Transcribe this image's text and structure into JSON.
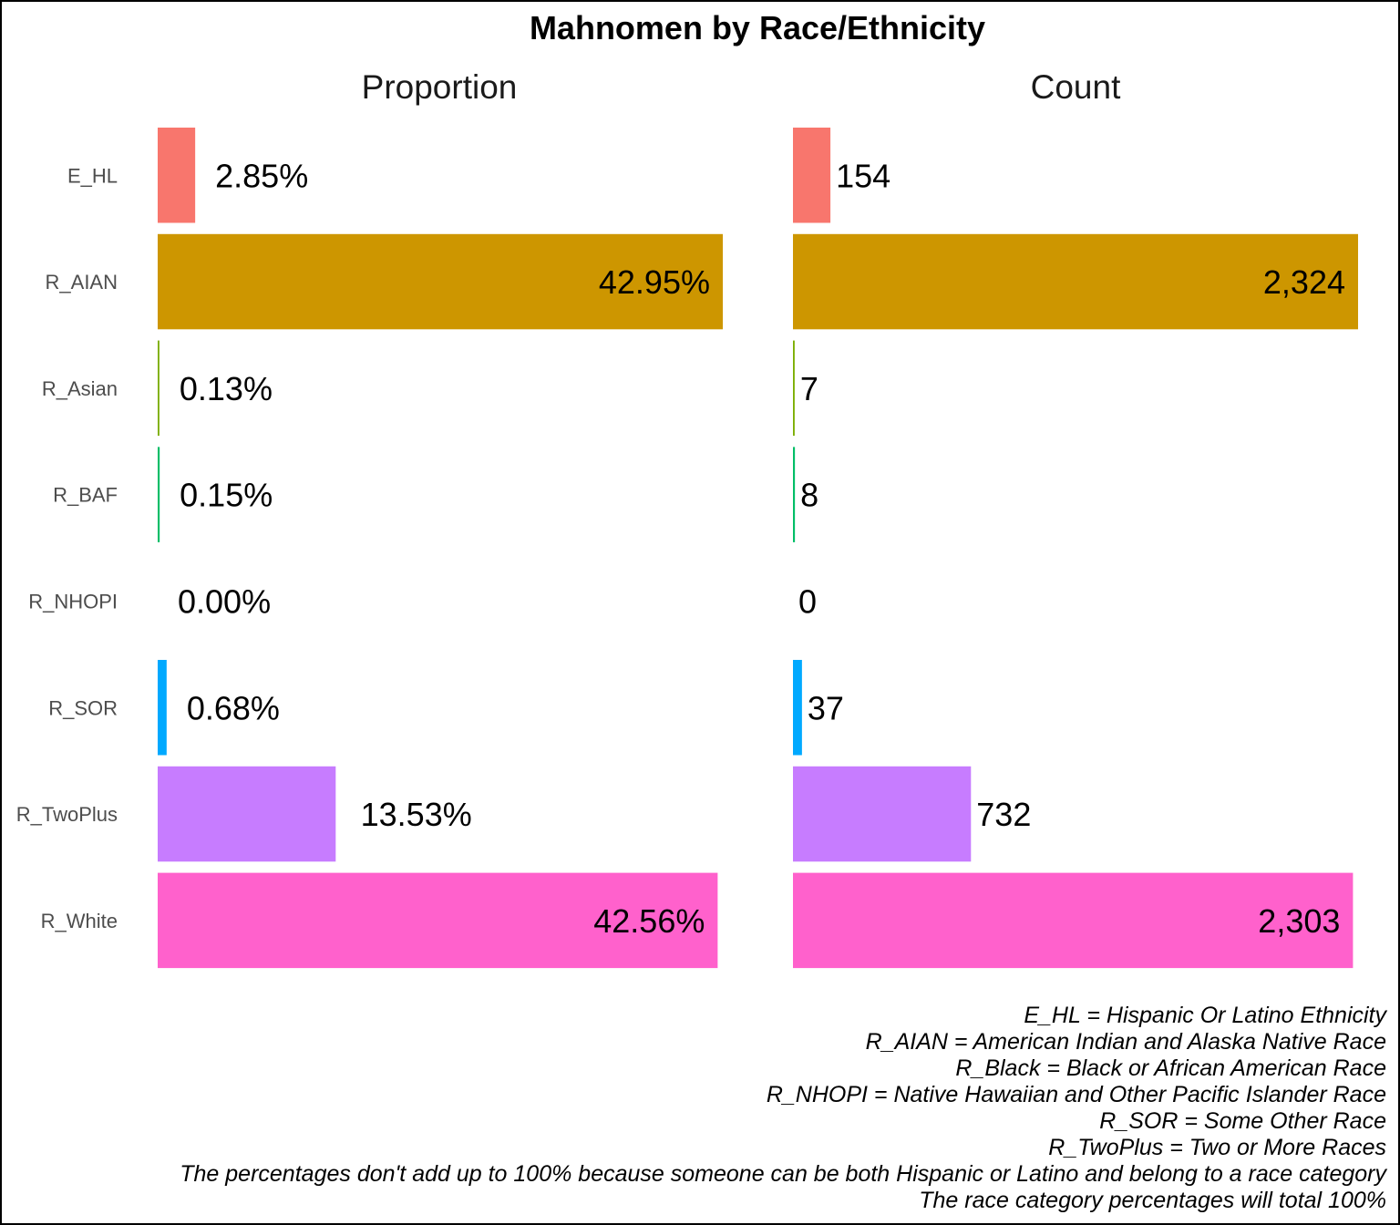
{
  "chart_data": {
    "type": "bar",
    "orientation": "horizontal",
    "title": "Mahnomen by Race/Ethnicity",
    "categories": [
      "E_HL",
      "R_AIAN",
      "R_Asian",
      "R_BAF",
      "R_NHOPI",
      "R_SOR",
      "R_TwoPlus",
      "R_White"
    ],
    "colors": [
      "#F8766D",
      "#CD9600",
      "#7CAE00",
      "#00BE67",
      "#00BFC4",
      "#00A9FF",
      "#C77CFF",
      "#FF61CC"
    ],
    "panels": [
      {
        "name": "Proportion",
        "values": [
          2.85,
          42.95,
          0.13,
          0.15,
          0.0,
          0.68,
          13.53,
          42.56
        ],
        "labels": [
          "2.85%",
          "42.95%",
          "0.13%",
          "0.15%",
          "0.00%",
          "0.68%",
          "13.53%",
          "42.56%"
        ]
      },
      {
        "name": "Count",
        "values": [
          154,
          2324,
          7,
          8,
          0,
          37,
          732,
          2303
        ],
        "labels": [
          "154",
          "2,324",
          "7",
          "8",
          "0",
          "37",
          "732",
          "2,303"
        ]
      }
    ],
    "grid": false,
    "legend": "none"
  },
  "caption_lines": [
    "E_HL = Hispanic Or Latino Ethnicity",
    "R_AIAN = American Indian and Alaska Native Race",
    "R_Black = Black or African American Race",
    "R_NHOPI = Native Hawaiian and Other Pacific Islander Race",
    "R_SOR = Some Other Race",
    "R_TwoPlus = Two or More Races",
    "The percentages don't add up to 100% because someone can be both Hispanic or Latino and belong to a race category",
    "The race category percentages will total 100%"
  ]
}
